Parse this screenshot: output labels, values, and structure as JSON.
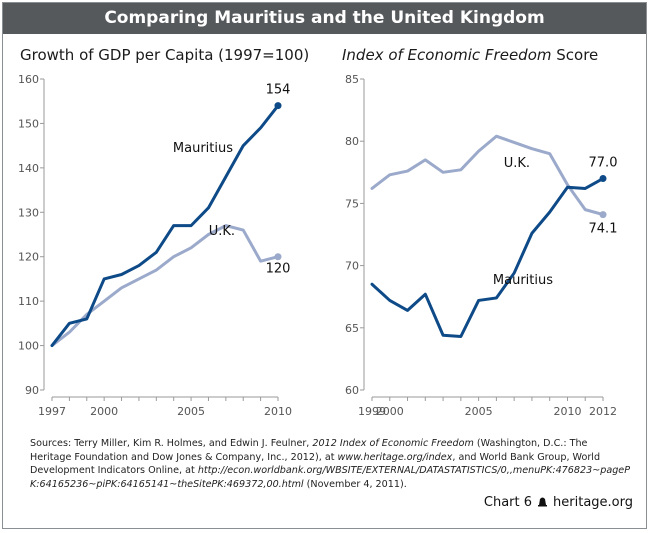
{
  "banner_title": "Comparing Mauritius and the United Kingdom",
  "left_title": "Growth of GDP per Capita (1997=100)",
  "right_title_italic": "Index of Economic Freedom",
  "right_title_rest": " Score",
  "sources": {
    "label": "Sources:",
    "t1": " Terry Miller, Kim R. Holmes, and Edwin J. Feulner, ",
    "t2": "2012 Index of Economic Freedom",
    "t3": " (Washington, D.C.: The Heritage Foundation and Dow Jones & Company, Inc., 2012), at ",
    "t4": "www.heritage.org/index",
    "t5": ", and World Bank Group, World Development Indicators Online, at ",
    "t6": "http://econ.worldbank.org/WBSITE/EXTERNAL/DATASTATISTICS/0,,menuPK:476823~pagePK:64165236~piPK:64165141~theSitePK:469372,00.html",
    "t7": " (November 4, 2011)."
  },
  "footer": {
    "chart_label": "Chart 6",
    "site": "heritage.org"
  },
  "colors": {
    "mauritius": "#0d4a87",
    "uk": "#9ba9cb",
    "banner": "#56595c",
    "axis": "#999999"
  },
  "chart_data": [
    {
      "type": "line",
      "title": "Growth of GDP per Capita (1997=100)",
      "xlim": [
        1997,
        2010
      ],
      "ylim": [
        90,
        160
      ],
      "yticks": [
        90,
        100,
        110,
        120,
        130,
        140,
        150,
        160
      ],
      "xticks": [
        1997,
        2000,
        2005,
        2010
      ],
      "x": [
        1997,
        1998,
        1999,
        2000,
        2001,
        2002,
        2003,
        2004,
        2005,
        2006,
        2007,
        2008,
        2009,
        2010
      ],
      "series": [
        {
          "name": "Mauritius",
          "values": [
            100,
            105,
            106,
            115,
            116,
            118,
            121,
            127,
            127,
            131,
            138,
            145,
            149,
            154
          ],
          "end_label": "154"
        },
        {
          "name": "U.K.",
          "values": [
            100,
            103,
            107,
            110,
            113,
            115,
            117,
            120,
            122,
            125,
            127,
            126,
            119,
            120
          ],
          "end_label": "120"
        }
      ]
    },
    {
      "type": "line",
      "title": "Index of Economic Freedom Score",
      "xlim": [
        1999,
        2012
      ],
      "ylim": [
        60,
        85
      ],
      "yticks": [
        60,
        65,
        70,
        75,
        80,
        85
      ],
      "xticks": [
        1999,
        2000,
        2005,
        2010,
        2012
      ],
      "x": [
        1999,
        2000,
        2001,
        2002,
        2003,
        2004,
        2005,
        2006,
        2007,
        2008,
        2009,
        2010,
        2011,
        2012
      ],
      "series": [
        {
          "name": "Mauritius",
          "values": [
            68.5,
            67.2,
            66.4,
            67.7,
            64.4,
            64.3,
            67.2,
            67.4,
            69.4,
            72.6,
            74.3,
            76.3,
            76.2,
            77.0
          ],
          "end_label": "77.0"
        },
        {
          "name": "U.K.",
          "values": [
            76.2,
            77.3,
            77.6,
            78.5,
            77.5,
            77.7,
            79.2,
            80.4,
            79.9,
            79.4,
            79.0,
            76.5,
            74.5,
            74.1
          ],
          "end_label": "74.1"
        }
      ]
    }
  ]
}
